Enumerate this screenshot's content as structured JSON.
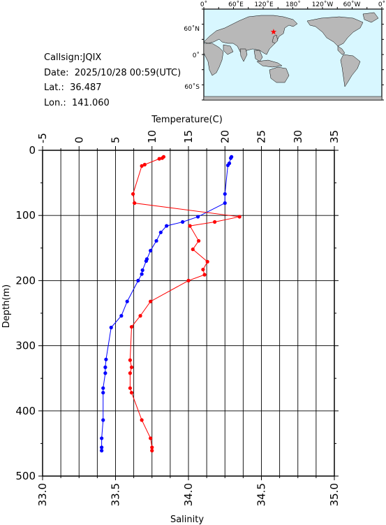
{
  "station": {
    "callsign_label": "Callsign:",
    "callsign": "JQIX",
    "date_label": "Date:",
    "date": "2025/10/28 00:59(UTC)",
    "lat_label": "Lat.:",
    "lat": "36.487",
    "lon_label": "Lon.:",
    "lon": "141.060"
  },
  "map": {
    "top_ticks": [
      "0˚",
      "60˚E",
      "120˚E",
      "180˚",
      "120˚W",
      "60˚W",
      "0˚"
    ],
    "left_ticks": [
      "60˚N",
      "0˚",
      "60˚S"
    ],
    "ocean_color": "#d8f7ff",
    "land_color": "#b8b8b8",
    "marker_color": "#ff0000",
    "marker_lon": 141.06,
    "marker_lat": 36.487
  },
  "chart_data": {
    "type": "line",
    "title": "",
    "xlabel_top": "Temperature(C)",
    "xlabel_bottom": "Salinity",
    "ylabel": "Depth(m)",
    "temperature_ticks": [
      "-5",
      "0",
      "5",
      "10",
      "15",
      "20",
      "25",
      "30",
      "35"
    ],
    "salinity_ticks": [
      "33.0",
      "33.5",
      "34.0",
      "34.5",
      "35.0"
    ],
    "depth_ticks": [
      "0",
      "100",
      "200",
      "300",
      "400",
      "500"
    ],
    "temperature_range": [
      -5,
      35
    ],
    "salinity_range": [
      33.0,
      35.0
    ],
    "depth_range": [
      0,
      500
    ],
    "grid": true,
    "series": [
      {
        "color": "#0000ff",
        "axis": "temperature",
        "points": [
          [
            20.9,
            10
          ],
          [
            20.8,
            12
          ],
          [
            20.6,
            20
          ],
          [
            20.4,
            23
          ],
          [
            20.0,
            67
          ],
          [
            20.0,
            81
          ],
          [
            16.3,
            102
          ],
          [
            14.2,
            110
          ],
          [
            12.0,
            116
          ],
          [
            11.2,
            126
          ],
          [
            10.6,
            139
          ],
          [
            9.8,
            154
          ],
          [
            9.3,
            167
          ],
          [
            9.2,
            170
          ],
          [
            8.7,
            184
          ],
          [
            8.6,
            190
          ],
          [
            8.1,
            200
          ],
          [
            6.6,
            232
          ],
          [
            5.8,
            254
          ],
          [
            4.4,
            272
          ],
          [
            3.7,
            321
          ],
          [
            3.6,
            333
          ],
          [
            3.6,
            342
          ],
          [
            3.3,
            365
          ],
          [
            3.3,
            372
          ],
          [
            3.3,
            414
          ],
          [
            3.1,
            442
          ],
          [
            3.1,
            456
          ],
          [
            3.1,
            461
          ]
        ]
      },
      {
        "color": "#ff0000",
        "axis": "salinity",
        "points": [
          [
            33.83,
            10
          ],
          [
            33.82,
            12
          ],
          [
            33.8,
            13
          ],
          [
            33.7,
            22
          ],
          [
            33.68,
            24
          ],
          [
            33.62,
            67
          ],
          [
            33.63,
            81
          ],
          [
            34.35,
            102
          ],
          [
            34.18,
            110
          ],
          [
            34.01,
            116
          ],
          [
            34.07,
            139
          ],
          [
            34.03,
            152
          ],
          [
            34.13,
            171
          ],
          [
            34.1,
            183
          ],
          [
            34.11,
            191
          ],
          [
            34.0,
            200
          ],
          [
            33.74,
            232
          ],
          [
            33.67,
            254
          ],
          [
            33.61,
            271
          ],
          [
            33.6,
            322
          ],
          [
            33.61,
            333
          ],
          [
            33.6,
            342
          ],
          [
            33.6,
            365
          ],
          [
            33.61,
            372
          ],
          [
            33.68,
            414
          ],
          [
            33.74,
            442
          ],
          [
            33.75,
            456
          ],
          [
            33.75,
            461
          ]
        ]
      }
    ]
  }
}
